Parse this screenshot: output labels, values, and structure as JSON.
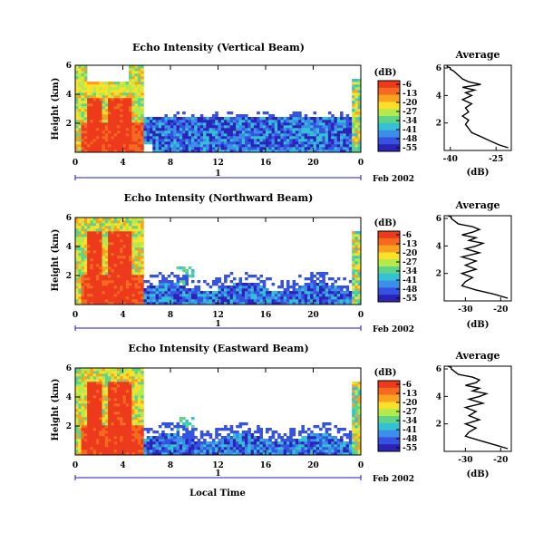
{
  "panels": [
    {
      "title": "Echo Intensity (Vertical Beam)",
      "chart_data": {
        "type": "heatmap",
        "title": "Echo Intensity (Vertical Beam)",
        "xlabel": "",
        "ylabel": "Height (km)",
        "xlim": [
          0,
          24
        ],
        "ylim": [
          0,
          6
        ],
        "xticks": [
          "0",
          "4",
          "8",
          "12",
          "16",
          "20",
          "0"
        ],
        "yticks": [
          "2",
          "4",
          "6"
        ],
        "colorbar_label": "(dB)",
        "colorbar_ticks": [
          "-6",
          "-13",
          "-20",
          "-27",
          "-34",
          "-41",
          "-48",
          "-55"
        ],
        "date_label": "Feb 2002",
        "day_marker": "1",
        "profile": {
          "title": "Average",
          "xlabel": "(dB)",
          "xticks": [
            "-40",
            "-25"
          ],
          "yticks": [
            "2",
            "4",
            "6"
          ],
          "xlim": [
            -42,
            -20
          ],
          "x": [
            -21,
            -24,
            -27,
            -30,
            -33,
            -34,
            -35,
            -34,
            -36,
            -34,
            -35,
            -33,
            -36,
            -33,
            -35,
            -32,
            -36,
            -30,
            -34,
            -36,
            -37,
            -38,
            -39,
            -40,
            -40,
            -41,
            -41
          ],
          "y": [
            0.2,
            0.4,
            0.7,
            1.0,
            1.3,
            1.6,
            1.9,
            2.2,
            2.5,
            2.8,
            3.1,
            3.4,
            3.7,
            4.0,
            4.2,
            4.4,
            4.6,
            4.8,
            5.0,
            5.2,
            5.4,
            5.6,
            5.8,
            5.9,
            6.0,
            6.1,
            6.2
          ]
        }
      }
    },
    {
      "title": "Echo Intensity (Northward Beam)",
      "chart_data": {
        "type": "heatmap",
        "title": "Echo Intensity (Northward Beam)",
        "xlabel": "",
        "ylabel": "Height (km)",
        "xlim": [
          0,
          24
        ],
        "ylim": [
          0,
          6
        ],
        "xticks": [
          "0",
          "4",
          "8",
          "12",
          "16",
          "20",
          "0"
        ],
        "yticks": [
          "2",
          "4",
          "6"
        ],
        "colorbar_label": "(dB)",
        "colorbar_ticks": [
          "-6",
          "-13",
          "-20",
          "-27",
          "-34",
          "-41",
          "-48",
          "-55"
        ],
        "date_label": "Feb 2002",
        "day_marker": "1",
        "profile": {
          "title": "Average",
          "xlabel": "(dB)",
          "xticks": [
            "-30",
            "-20"
          ],
          "yticks": [
            "2",
            "4",
            "6"
          ],
          "xlim": [
            -36,
            -17
          ],
          "x": [
            -18,
            -22,
            -27,
            -31,
            -30,
            -28,
            -31,
            -27,
            -30,
            -27,
            -31,
            -26,
            -30,
            -27,
            -25,
            -29,
            -27,
            -31,
            -28,
            -26,
            -28,
            -32,
            -33,
            -34,
            -34,
            -35
          ],
          "y": [
            0.2,
            0.5,
            0.8,
            1.1,
            1.4,
            1.7,
            2.0,
            2.3,
            2.6,
            2.9,
            3.2,
            3.5,
            3.8,
            4.0,
            4.2,
            4.4,
            4.6,
            4.8,
            5.0,
            5.2,
            5.4,
            5.6,
            5.8,
            6.0,
            6.1,
            6.2
          ]
        }
      }
    },
    {
      "title": "Echo Intensity (Eastward Beam)",
      "chart_data": {
        "type": "heatmap",
        "title": "Echo Intensity (Eastward Beam)",
        "xlabel": "Local Time",
        "ylabel": "Height (km)",
        "xlim": [
          0,
          24
        ],
        "ylim": [
          0,
          6
        ],
        "xticks": [
          "0",
          "4",
          "8",
          "12",
          "16",
          "20",
          "0"
        ],
        "yticks": [
          "2",
          "4",
          "6"
        ],
        "colorbar_label": "(dB)",
        "colorbar_ticks": [
          "-6",
          "-13",
          "-20",
          "-27",
          "-34",
          "-41",
          "-48",
          "-55"
        ],
        "date_label": "Feb 2002",
        "day_marker": "1",
        "profile": {
          "title": "Average",
          "xlabel": "(dB)",
          "xticks": [
            "-30",
            "-20"
          ],
          "yticks": [
            "2",
            "4",
            "6"
          ],
          "xlim": [
            -36,
            -17
          ],
          "x": [
            -18,
            -22,
            -26,
            -30,
            -29,
            -27,
            -30,
            -26,
            -29,
            -27,
            -30,
            -25,
            -29,
            -26,
            -24,
            -28,
            -26,
            -30,
            -27,
            -26,
            -28,
            -32,
            -33,
            -34,
            -34,
            -35
          ],
          "y": [
            0.2,
            0.5,
            0.8,
            1.1,
            1.4,
            1.7,
            2.0,
            2.3,
            2.6,
            2.9,
            3.2,
            3.5,
            3.8,
            4.0,
            4.2,
            4.4,
            4.6,
            4.8,
            5.0,
            5.2,
            5.4,
            5.6,
            5.8,
            6.0,
            6.1,
            6.2
          ]
        }
      }
    }
  ],
  "colors": {
    "scale": [
      "#ee3a1c",
      "#f46a1e",
      "#f9a21f",
      "#fde02a",
      "#b5ea4c",
      "#5fd488",
      "#34c1d6",
      "#3c8ee8",
      "#3652e0",
      "#2b22b8"
    ],
    "axis": "#1a1ac8"
  }
}
